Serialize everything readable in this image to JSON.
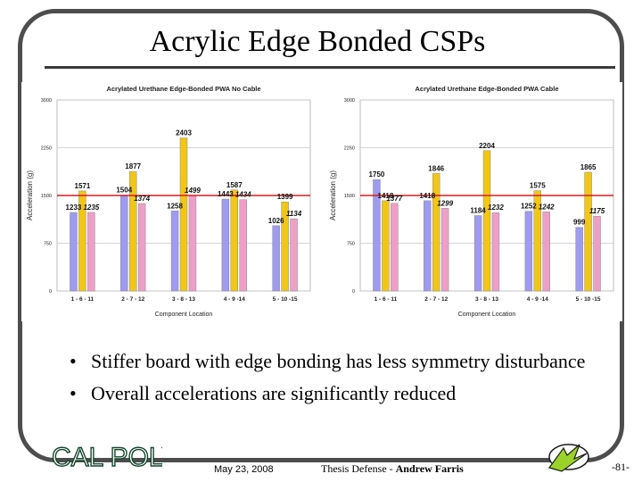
{
  "slide": {
    "title": "Acrylic Edge Bonded CSPs",
    "bullets": [
      "Stiffer board with edge bonding has less symmetry disturbance",
      "Overall accelerations are significantly reduced"
    ],
    "footer": {
      "date": "May 23, 2008",
      "thesis_prefix": "Thesis Defense - ",
      "author": "Andrew Farris",
      "slide_number": "-81-",
      "logo_text": "CAL POLY"
    }
  },
  "colors": {
    "blue": "#9e9bf0",
    "yellow": "#f2c617",
    "pink": "#ee9fc7",
    "limit_line": "#d81b1b",
    "grid": "#c9c9c9"
  },
  "chart_data": [
    {
      "type": "bar",
      "title": "Acrylated Urethane Edge-Bonded PWA No Cable",
      "xlabel": "Component Location",
      "ylabel": "Acceleration (g)",
      "ylim": [
        0,
        3000
      ],
      "yticks": [
        "0",
        "750",
        "1500",
        "2250",
        "3000"
      ],
      "reference_line": 1500,
      "categories": [
        "1 - 6 - 11",
        "2 - 7 - 12",
        "3 - 8 - 13",
        "4 - 9 -14",
        "5 - 10 -15"
      ],
      "series": [
        {
          "color": "blue",
          "values": [
            1233,
            1504,
            1258,
            1443,
            1026
          ]
        },
        {
          "color": "yellow",
          "values": [
            1571,
            1877,
            2403,
            1587,
            1399
          ]
        },
        {
          "color": "pink",
          "values": [
            1235,
            1374,
            1499,
            1434,
            1134
          ]
        }
      ],
      "data_labels": [
        [
          "1233",
          "1571",
          "1235"
        ],
        [
          "1504",
          "1877",
          "1374"
        ],
        [
          "1258",
          "2403",
          "1499"
        ],
        [
          "1443",
          "1587",
          "1434"
        ],
        [
          "1026",
          "1399",
          "1134"
        ]
      ],
      "grid": true
    },
    {
      "type": "bar",
      "title": "Acrylated Urethane Edge-Bonded PWA Cable",
      "xlabel": "Component Location",
      "ylabel": "Acceleration (g)",
      "ylim": [
        0,
        3000
      ],
      "yticks": [
        "0",
        "750",
        "1500",
        "2250",
        "3000"
      ],
      "reference_line": 1500,
      "categories": [
        "1 - 6 - 11",
        "2 - 7 - 12",
        "3 - 8 - 13",
        "4 - 9 -14",
        "5 - 10 -15"
      ],
      "series": [
        {
          "color": "blue",
          "values": [
            1750,
            1418,
            1184,
            1252,
            999
          ]
        },
        {
          "color": "yellow",
          "values": [
            1418,
            1846,
            2204,
            1575,
            1865
          ]
        },
        {
          "color": "pink",
          "values": [
            1377,
            1299,
            1232,
            1242,
            1175
          ]
        }
      ],
      "data_labels": [
        [
          "1750",
          "1418",
          "1377"
        ],
        [
          "1418",
          "1846",
          "1299"
        ],
        [
          "1184",
          "2204",
          "1232"
        ],
        [
          "1252",
          "1575",
          "1242"
        ],
        [
          "999",
          "1865",
          "1175"
        ]
      ],
      "grid": true
    }
  ]
}
